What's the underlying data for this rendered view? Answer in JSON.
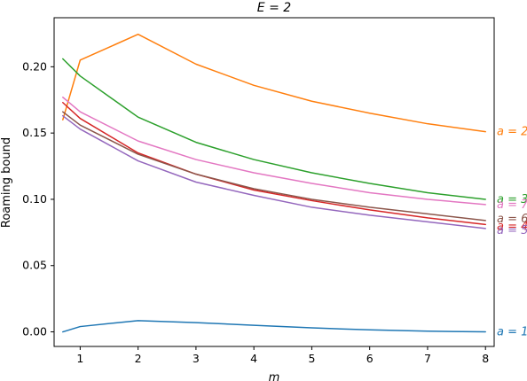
{
  "chart_data": {
    "type": "line",
    "title": "E = 2",
    "xlabel": "m",
    "ylabel": "Roaming bound",
    "xlim": [
      0.55,
      8.15
    ],
    "ylim": [
      -0.011,
      0.237
    ],
    "xticks": [
      "1",
      "2",
      "3",
      "4",
      "5",
      "6",
      "7",
      "8"
    ],
    "yticks": [
      "0.00",
      "0.05",
      "0.10",
      "0.15",
      "0.20"
    ],
    "grid": false,
    "legend": "right-side inline labels",
    "x": [
      0.7,
      1,
      2,
      3,
      4,
      5,
      6,
      7,
      8
    ],
    "series": [
      {
        "name": "a = 1",
        "color": "#1f77b4",
        "values": [
          0.0,
          0.004,
          0.0085,
          0.007,
          0.005,
          0.003,
          0.0015,
          0.0005,
          0.0
        ]
      },
      {
        "name": "a = 2",
        "color": "#ff7f0e",
        "values": [
          0.16,
          0.205,
          0.2245,
          0.202,
          0.186,
          0.174,
          0.165,
          0.157,
          0.151
        ]
      },
      {
        "name": "a = 3",
        "color": "#2ca02c",
        "values": [
          0.206,
          0.193,
          0.162,
          0.143,
          0.13,
          0.12,
          0.112,
          0.105,
          0.1
        ]
      },
      {
        "name": "a = 4",
        "color": "#d62728",
        "values": [
          0.173,
          0.161,
          0.135,
          0.119,
          0.107,
          0.099,
          0.092,
          0.086,
          0.081
        ]
      },
      {
        "name": "a = 5",
        "color": "#9467bd",
        "values": [
          0.163,
          0.153,
          0.129,
          0.113,
          0.103,
          0.094,
          0.088,
          0.083,
          0.078
        ]
      },
      {
        "name": "a = 6",
        "color": "#8c564b",
        "values": [
          0.166,
          0.156,
          0.134,
          0.119,
          0.108,
          0.1,
          0.094,
          0.089,
          0.084
        ]
      },
      {
        "name": "a = 7",
        "color": "#e377c2",
        "values": [
          0.177,
          0.166,
          0.144,
          0.13,
          0.12,
          0.112,
          0.105,
          0.1,
          0.096
        ]
      }
    ]
  }
}
